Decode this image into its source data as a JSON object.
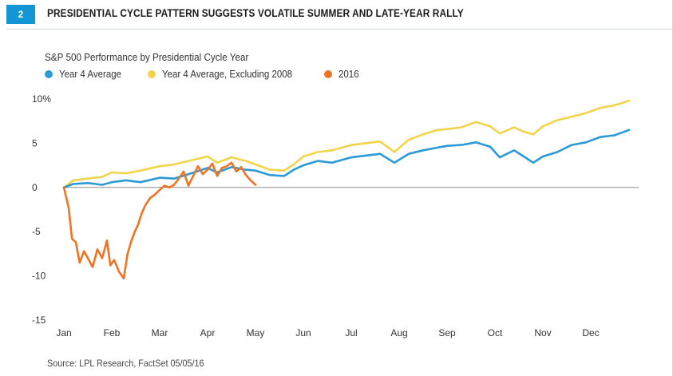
{
  "figure": {
    "number": "2",
    "title": "PRESIDENTIAL CYCLE PATTERN SUGGESTS VOLATILE SUMMER AND LATE-YEAR RALLY",
    "source": "Source: LPL Research, FactSet 05/05/16"
  },
  "chart_data": {
    "type": "line",
    "title": "S&P 500 Performance by Presidential Cycle Year",
    "xlabel": "",
    "ylabel": "",
    "ylim": [
      -15,
      10
    ],
    "y_ticks": [
      {
        "value": 10,
        "label": "10%"
      },
      {
        "value": 5,
        "label": "5"
      },
      {
        "value": 0,
        "label": "0"
      },
      {
        "value": -5,
        "label": "-5"
      },
      {
        "value": -10,
        "label": "-10"
      },
      {
        "value": -15,
        "label": "-15"
      }
    ],
    "x_ticks": [
      "Jan",
      "Feb",
      "Mar",
      "Apr",
      "May",
      "Jun",
      "Jul",
      "Aug",
      "Sep",
      "Oct",
      "Nov",
      "Dec"
    ],
    "legend_position": "top-left",
    "grid": false,
    "x_unit": "month (0 = Jan, 12 = year end)",
    "series": [
      {
        "name": "Year 4 Average",
        "color": "#2b9ad6",
        "x": [
          0,
          0.2,
          0.5,
          0.8,
          1.0,
          1.3,
          1.6,
          2.0,
          2.3,
          2.6,
          3.0,
          3.2,
          3.5,
          3.8,
          4.0,
          4.3,
          4.6,
          4.8,
          5.0,
          5.3,
          5.6,
          6.0,
          6.3,
          6.6,
          6.9,
          7.2,
          7.5,
          7.8,
          8.0,
          8.3,
          8.6,
          8.9,
          9.1,
          9.4,
          9.6,
          9.8,
          10.0,
          10.3,
          10.6,
          10.9,
          11.2,
          11.5,
          11.8
        ],
        "y": [
          0.0,
          0.4,
          0.5,
          0.3,
          0.6,
          0.8,
          0.6,
          1.1,
          1.0,
          1.5,
          2.2,
          1.7,
          2.3,
          2.0,
          1.9,
          1.4,
          1.3,
          2.0,
          2.5,
          3.0,
          2.8,
          3.4,
          3.6,
          3.8,
          2.8,
          3.8,
          4.2,
          4.5,
          4.7,
          4.8,
          5.1,
          4.6,
          3.4,
          4.2,
          3.5,
          2.8,
          3.5,
          4.0,
          4.8,
          5.1,
          5.7,
          5.9,
          6.5
        ]
      },
      {
        "name": "Year 4 Average, Excluding 2008",
        "color": "#f1d44a",
        "x": [
          0,
          0.2,
          0.5,
          0.8,
          1.0,
          1.3,
          1.6,
          2.0,
          2.3,
          2.6,
          3.0,
          3.2,
          3.5,
          3.8,
          4.0,
          4.3,
          4.6,
          4.8,
          5.0,
          5.3,
          5.6,
          6.0,
          6.3,
          6.6,
          6.9,
          7.2,
          7.5,
          7.8,
          8.0,
          8.3,
          8.6,
          8.9,
          9.1,
          9.4,
          9.6,
          9.8,
          10.0,
          10.3,
          10.6,
          10.9,
          11.2,
          11.5,
          11.8
        ],
        "y": [
          0.0,
          0.8,
          1.0,
          1.2,
          1.7,
          1.6,
          1.9,
          2.4,
          2.6,
          3.0,
          3.5,
          2.8,
          3.4,
          3.0,
          2.6,
          2.0,
          1.9,
          2.6,
          3.5,
          4.0,
          4.2,
          4.8,
          5.0,
          5.2,
          4.0,
          5.4,
          6.0,
          6.5,
          6.6,
          6.8,
          7.4,
          6.9,
          6.1,
          6.8,
          6.3,
          6.0,
          6.9,
          7.6,
          8.0,
          8.4,
          9.0,
          9.3,
          9.8
        ]
      },
      {
        "name": "2016",
        "color": "#ee7423",
        "x": [
          0,
          0.1,
          0.17,
          0.25,
          0.33,
          0.42,
          0.5,
          0.6,
          0.7,
          0.8,
          0.9,
          0.97,
          1.05,
          1.15,
          1.25,
          1.33,
          1.4,
          1.48,
          1.55,
          1.62,
          1.7,
          1.8,
          1.9,
          2.0,
          2.1,
          2.2,
          2.3,
          2.4,
          2.5,
          2.6,
          2.7,
          2.8,
          2.9,
          3.0,
          3.1,
          3.2,
          3.3,
          3.4,
          3.5,
          3.6,
          3.7,
          3.8,
          3.9,
          4.0
        ],
        "y": [
          0.0,
          -2.3,
          -5.8,
          -6.2,
          -8.5,
          -7.2,
          -8.0,
          -9.0,
          -7.0,
          -8.0,
          -6.0,
          -8.8,
          -8.2,
          -9.5,
          -10.3,
          -7.5,
          -6.2,
          -5.0,
          -4.2,
          -3.0,
          -2.0,
          -1.2,
          -0.8,
          -0.3,
          0.2,
          0.0,
          0.3,
          1.0,
          1.8,
          0.2,
          1.3,
          2.4,
          1.5,
          2.0,
          2.7,
          1.3,
          2.2,
          2.4,
          2.8,
          1.8,
          2.3,
          1.4,
          0.8,
          0.3
        ]
      }
    ]
  }
}
